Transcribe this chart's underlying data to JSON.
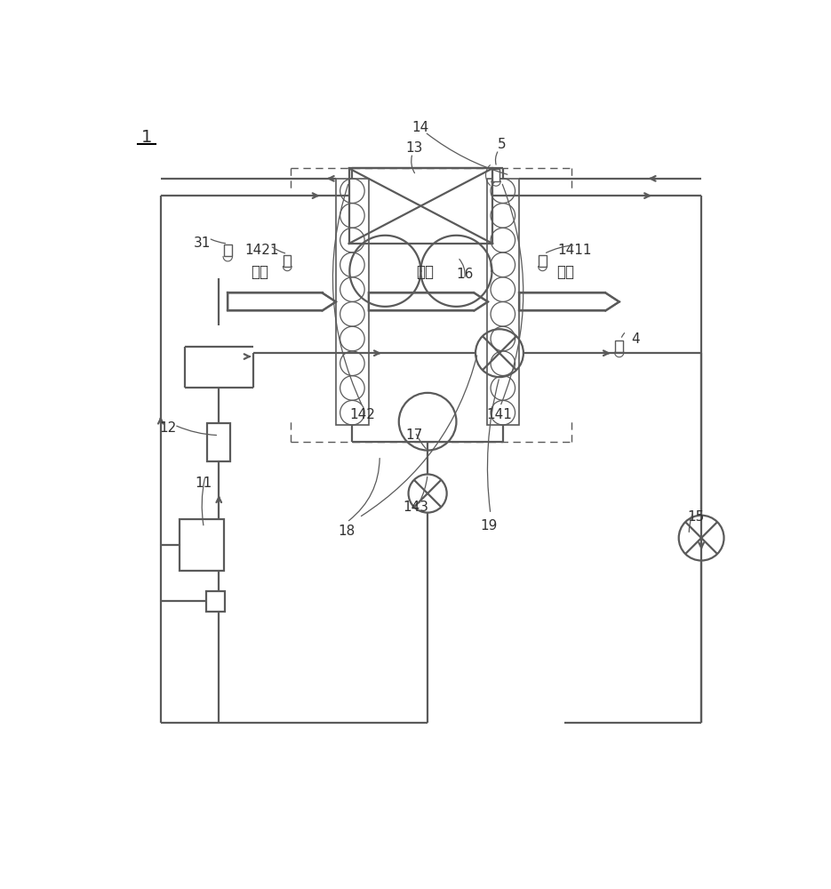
{
  "bg_color": "#ffffff",
  "lc": "#5a5a5a",
  "lw": 1.6,
  "thin_lw": 1.0,
  "label_color": "#303030",
  "chinese": {
    "jin_feng": "进风",
    "liang_feng": "凉风",
    "chu_feng": "出风"
  }
}
